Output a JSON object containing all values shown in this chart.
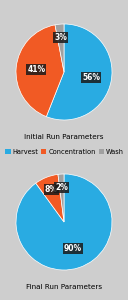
{
  "top_pie": {
    "values": [
      56,
      41,
      3
    ],
    "colors": [
      "#29ABE2",
      "#F15A24",
      "#A0A0A0"
    ],
    "labels": [
      "56%",
      "41%",
      "3%"
    ],
    "title": "Initial Run Parameters",
    "startangle": 90,
    "label_radii": [
      0.58,
      0.58,
      0.72
    ]
  },
  "bottom_pie": {
    "values": [
      90,
      8,
      2
    ],
    "colors": [
      "#29ABE2",
      "#F15A24",
      "#A0A0A0"
    ],
    "labels": [
      "90%",
      "8%",
      "2%"
    ],
    "title": "Final Run Parameters",
    "startangle": 90,
    "label_radii": [
      0.58,
      0.72,
      0.72
    ]
  },
  "legend_labels": [
    "Harvest",
    "Concentration",
    "Wash"
  ],
  "legend_colors": [
    "#29ABE2",
    "#F15A24",
    "#A0A0A0"
  ],
  "background_color": "#CECECE",
  "title_fontsize": 5.2,
  "label_fontsize": 5.5,
  "legend_fontsize": 4.8
}
